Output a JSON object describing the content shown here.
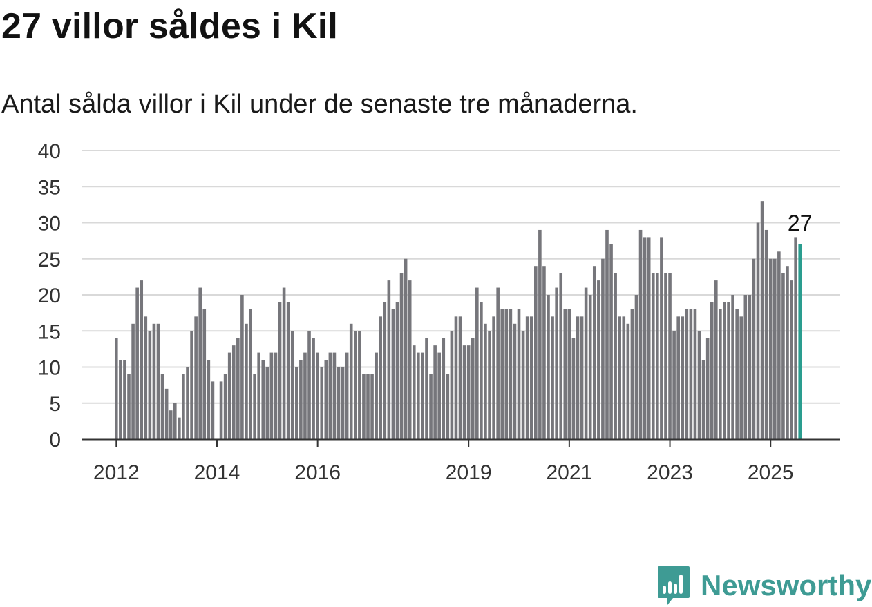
{
  "title": "27 villor såldes i Kil",
  "subtitle": "Antal sålda villor i Kil under de senaste tre månaderna.",
  "brand": {
    "name": "Newsworthy",
    "icon": "newsworthy-logo-icon",
    "color": "#3e9b94"
  },
  "chart_data": {
    "type": "bar",
    "title": "27 villor såldes i Kil",
    "subtitle": "Antal sålda villor i Kil under de senaste tre månaderna.",
    "xlabel": "",
    "ylabel": "",
    "ylim": [
      0,
      40
    ],
    "yticks": [
      "0",
      "5",
      "10",
      "15",
      "20",
      "25",
      "30",
      "35",
      "40"
    ],
    "xticks": [
      "2012",
      "2014",
      "2016",
      "2019",
      "2021",
      "2023",
      "2025"
    ],
    "grid": true,
    "bar_color": "#76767b",
    "highlight_color": "#2a9d8f",
    "highlight_label": "27",
    "series": [
      {
        "values": [
          14,
          11,
          11,
          9,
          16,
          21,
          22,
          17,
          15,
          16,
          16,
          9,
          7,
          4,
          5,
          3,
          9,
          10,
          15,
          17,
          21,
          18,
          11,
          8,
          0,
          8,
          9,
          12,
          13,
          14,
          20,
          16,
          18,
          9,
          12,
          11,
          10,
          12,
          12,
          19,
          21,
          19,
          15,
          10,
          11,
          12,
          15,
          14,
          12,
          10,
          11,
          12,
          12,
          10,
          10,
          12,
          16,
          15,
          15,
          9,
          9,
          9,
          12,
          17,
          19,
          22,
          18,
          19,
          23,
          25,
          22,
          13,
          12,
          12,
          14,
          9,
          13,
          12,
          14,
          9,
          15,
          17,
          17,
          13,
          13,
          14,
          21,
          19,
          16,
          15,
          17,
          21,
          18,
          18,
          18,
          16,
          18,
          15,
          17,
          17,
          24,
          29,
          24,
          20,
          17,
          21,
          23,
          18,
          18,
          14,
          17,
          17,
          21,
          20,
          24,
          22,
          25,
          29,
          27,
          23,
          17,
          17,
          16,
          18,
          20,
          29,
          28,
          28,
          23,
          23,
          28,
          23,
          23,
          15,
          17,
          17,
          18,
          18,
          18,
          15,
          11,
          14,
          19,
          22,
          18,
          19,
          19,
          20,
          18,
          17,
          20,
          20,
          25,
          30,
          33,
          29,
          25,
          25,
          26,
          23,
          24,
          22,
          28,
          27
        ]
      }
    ]
  }
}
